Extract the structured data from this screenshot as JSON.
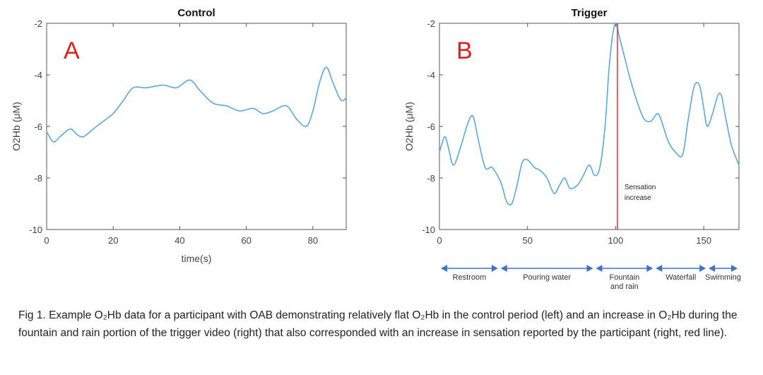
{
  "chart_data": [
    {
      "type": "line",
      "title": "Control",
      "panel_letter": "A",
      "xlabel": "time(s)",
      "ylabel": "O2Hb (μM)",
      "xlim": [
        0,
        90
      ],
      "ylim": [
        -10,
        -2
      ],
      "x_ticks": [
        0,
        20,
        40,
        60,
        80
      ],
      "y_ticks": [
        -2,
        -4,
        -6,
        -8,
        -10
      ],
      "grid": false,
      "series_color": "#5aa8de",
      "series": [
        {
          "x": [
            0,
            2,
            4,
            7,
            9,
            11,
            14,
            17,
            20,
            23,
            26,
            30,
            35,
            39,
            43,
            46,
            50,
            54,
            58,
            62,
            65,
            68,
            72,
            75,
            78,
            80,
            82,
            84,
            86,
            88,
            89,
            90
          ],
          "values": [
            -6.2,
            -6.6,
            -6.4,
            -6.1,
            -6.3,
            -6.4,
            -6.1,
            -5.8,
            -5.5,
            -5.0,
            -4.5,
            -4.5,
            -4.4,
            -4.5,
            -4.2,
            -4.6,
            -5.1,
            -5.2,
            -5.4,
            -5.3,
            -5.5,
            -5.4,
            -5.2,
            -5.7,
            -6.0,
            -5.4,
            -4.3,
            -3.7,
            -4.3,
            -4.9,
            -5.0,
            -4.9
          ]
        }
      ]
    },
    {
      "type": "line",
      "title": "Trigger",
      "panel_letter": "B",
      "xlabel": "",
      "ylabel": "O2Hb (μM)",
      "xlim": [
        0,
        170
      ],
      "ylim": [
        -10,
        -2
      ],
      "x_ticks": [
        0,
        50,
        100,
        150
      ],
      "y_ticks": [
        -2,
        -4,
        -6,
        -8,
        -10
      ],
      "grid": false,
      "series_color": "#5aa8de",
      "series": [
        {
          "x": [
            0,
            3,
            5,
            8,
            12,
            16,
            19,
            22,
            26,
            30,
            35,
            38,
            41,
            44,
            47,
            50,
            54,
            57,
            61,
            65,
            68,
            71,
            74,
            78,
            81,
            85,
            88,
            91,
            94,
            96,
            98,
            100,
            102,
            105,
            108,
            112,
            116,
            120,
            124,
            127,
            130,
            134,
            138,
            141,
            144,
            146,
            148,
            150,
            152,
            155,
            158,
            160,
            162,
            164,
            166,
            170
          ],
          "values": [
            -7.0,
            -6.4,
            -6.8,
            -7.5,
            -6.8,
            -5.9,
            -5.6,
            -6.5,
            -7.6,
            -7.6,
            -8.2,
            -8.9,
            -9.0,
            -8.3,
            -7.4,
            -7.3,
            -7.6,
            -7.7,
            -8.0,
            -8.6,
            -8.3,
            -8.0,
            -8.4,
            -8.3,
            -8.0,
            -7.5,
            -7.9,
            -7.6,
            -6.0,
            -4.0,
            -2.6,
            -2.0,
            -2.5,
            -3.3,
            -4.1,
            -5.0,
            -5.7,
            -5.8,
            -5.5,
            -6.0,
            -6.6,
            -7.0,
            -7.1,
            -5.8,
            -4.6,
            -4.3,
            -4.5,
            -5.3,
            -6.0,
            -5.5,
            -4.8,
            -4.8,
            -5.5,
            -6.2,
            -6.8,
            -7.5
          ]
        }
      ],
      "vline": {
        "x": 101,
        "color": "#e02020",
        "label_lines": [
          "Sensation",
          "increase"
        ]
      },
      "segments": [
        {
          "label": "Restroom",
          "start": 0,
          "end": 34
        },
        {
          "label": "Pouring water",
          "start": 34,
          "end": 88
        },
        {
          "label": "Fountain and rain",
          "label_lines": [
            "Fountain",
            "and rain"
          ],
          "start": 88,
          "end": 122
        },
        {
          "label": "Waterfall",
          "start": 122,
          "end": 152
        },
        {
          "label": "Swimming",
          "start": 152,
          "end": 170
        }
      ],
      "segment_arrow_color": "#3f72c8"
    }
  ],
  "caption": {
    "text": "Fig 1. Example O₂Hb data for a participant with OAB demonstrating relatively flat O₂Hb in the control period (left) and an increase in O₂Hb during the fountain and rain portion of the trigger video (right) that also corresponded with an increase in sensation reported by the participant (right, red line)."
  }
}
